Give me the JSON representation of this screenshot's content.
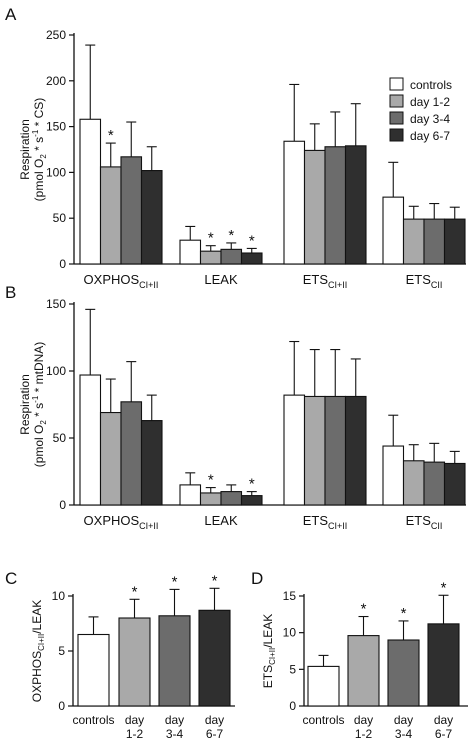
{
  "colors": {
    "controls": "#ffffff",
    "day 1-2": "#a9a9a9",
    "day 3-4": "#6c6c6c",
    "day 6-7": "#2f2f2f",
    "axis": "#111111"
  },
  "chart_data": [
    {
      "panel": "A",
      "type": "bar",
      "ylabel_line1": "Respiration",
      "ylabel_line2": "(pmol O",
      "ylabel_sub": "2",
      "ylabel_rest": " * s",
      "ylabel_sup": "-1",
      "ylabel_end": " * CS)",
      "ylim": [
        0,
        250
      ],
      "yticks": [
        0,
        50,
        100,
        150,
        200,
        250
      ],
      "legend": [
        "controls",
        "day 1-2",
        "day 3-4",
        "day 6-7"
      ],
      "legend_position": "top-right",
      "categories": [
        {
          "main": "OXPHOS",
          "sub": "CI+II"
        },
        {
          "main": "LEAK",
          "sub": ""
        },
        {
          "main": "ETS",
          "sub": "CI+II"
        },
        {
          "main": "ETS",
          "sub": "CII"
        }
      ],
      "series": [
        {
          "name": "controls",
          "values": [
            158,
            26,
            134,
            73
          ],
          "errors": [
            81,
            15,
            62,
            38
          ],
          "sig": [
            false,
            false,
            false,
            false
          ]
        },
        {
          "name": "day 1-2",
          "values": [
            106,
            14,
            124,
            49
          ],
          "errors": [
            26,
            6,
            29,
            14
          ],
          "sig": [
            true,
            true,
            false,
            false
          ]
        },
        {
          "name": "day 3-4",
          "values": [
            117,
            16,
            128,
            49
          ],
          "errors": [
            38,
            7,
            38,
            17
          ],
          "sig": [
            false,
            true,
            false,
            false
          ]
        },
        {
          "name": "day 6-7",
          "values": [
            102,
            12,
            129,
            49
          ],
          "errors": [
            26,
            5,
            46,
            13
          ],
          "sig": [
            false,
            true,
            false,
            false
          ]
        }
      ]
    },
    {
      "panel": "B",
      "type": "bar",
      "ylabel_line1": "Respiration",
      "ylabel_line2": "(pmol O",
      "ylabel_sub": "2",
      "ylabel_rest": " * s",
      "ylabel_sup": "-1",
      "ylabel_end": " * mtDNA)",
      "ylim": [
        0,
        150
      ],
      "yticks": [
        0,
        50,
        100,
        150
      ],
      "categories": [
        {
          "main": "OXPHOS",
          "sub": "CI+II"
        },
        {
          "main": "LEAK",
          "sub": ""
        },
        {
          "main": "ETS",
          "sub": "CI+II"
        },
        {
          "main": "ETS",
          "sub": "CII"
        }
      ],
      "series": [
        {
          "name": "controls",
          "values": [
            97,
            15,
            82,
            44
          ],
          "errors": [
            49,
            9,
            40,
            23
          ],
          "sig": [
            false,
            false,
            false,
            false
          ]
        },
        {
          "name": "day 1-2",
          "values": [
            69,
            9,
            81,
            33
          ],
          "errors": [
            25,
            4,
            35,
            12
          ],
          "sig": [
            false,
            true,
            false,
            false
          ]
        },
        {
          "name": "day 3-4",
          "values": [
            77,
            10,
            81,
            32
          ],
          "errors": [
            30,
            5,
            35,
            14
          ],
          "sig": [
            false,
            false,
            false,
            false
          ]
        },
        {
          "name": "day 6-7",
          "values": [
            63,
            7,
            81,
            31
          ],
          "errors": [
            19,
            3,
            28,
            9
          ],
          "sig": [
            false,
            true,
            false,
            false
          ]
        }
      ]
    },
    {
      "panel": "C",
      "type": "bar",
      "ylabel_main": "OXPHOS",
      "ylabel_sub": "CI+II",
      "ylabel_end": "/LEAK",
      "ylim": [
        0,
        10
      ],
      "yticks": [
        0,
        5,
        10
      ],
      "categories": [
        {
          "line1": "controls",
          "line2": ""
        },
        {
          "line1": "day",
          "line2": "1-2"
        },
        {
          "line1": "day",
          "line2": "3-4"
        },
        {
          "line1": "day",
          "line2": "6-7"
        }
      ],
      "values": [
        6.5,
        8.0,
        8.2,
        8.7
      ],
      "errors": [
        1.6,
        1.7,
        2.4,
        2.0
      ],
      "sig": [
        false,
        true,
        true,
        true
      ]
    },
    {
      "panel": "D",
      "type": "bar",
      "ylabel_main": "ETS",
      "ylabel_sub": "CI+II",
      "ylabel_end": "/LEAK",
      "ylim": [
        0,
        15
      ],
      "yticks": [
        0,
        5,
        10,
        15
      ],
      "categories": [
        {
          "line1": "controls",
          "line2": ""
        },
        {
          "line1": "day",
          "line2": "1-2"
        },
        {
          "line1": "day",
          "line2": "3-4"
        },
        {
          "line1": "day",
          "line2": "6-7"
        }
      ],
      "values": [
        5.4,
        9.6,
        9.0,
        11.2
      ],
      "errors": [
        1.5,
        2.6,
        2.6,
        3.9
      ],
      "sig": [
        false,
        true,
        true,
        true
      ]
    }
  ]
}
